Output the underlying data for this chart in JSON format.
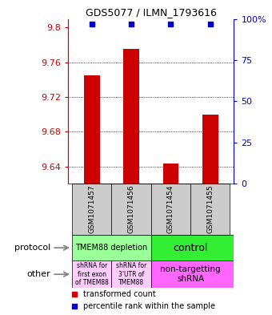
{
  "title": "GDS5077 / ILMN_1793616",
  "samples": [
    "GSM1071457",
    "GSM1071456",
    "GSM1071454",
    "GSM1071455"
  ],
  "bar_values": [
    9.745,
    9.775,
    9.643,
    9.7
  ],
  "dot_values": [
    97,
    97,
    97,
    97
  ],
  "ylim_left": [
    9.62,
    9.81
  ],
  "yticks_left": [
    9.64,
    9.68,
    9.72,
    9.76,
    9.8
  ],
  "yticks_right": [
    0,
    25,
    50,
    75,
    100
  ],
  "bar_color": "#cc0000",
  "dot_color": "#0000cc",
  "bar_width": 0.4,
  "protocol_labels": [
    "TMEM88 depletion",
    "control"
  ],
  "protocol_colors": [
    "#99ff99",
    "#33ee33"
  ],
  "other_labels": [
    "shRNA for\nfirst exon\nof TMEM88",
    "shRNA for\n3'UTR of\nTMEM88",
    "non-targetting\nshRNA"
  ],
  "other_colors": [
    "#ffccff",
    "#ffccff",
    "#ff66ff"
  ],
  "legend_red_label": "transformed count",
  "legend_blue_label": "percentile rank within the sample",
  "sample_box_color": "#cccccc",
  "grid_color": "black",
  "spine_color": "black"
}
